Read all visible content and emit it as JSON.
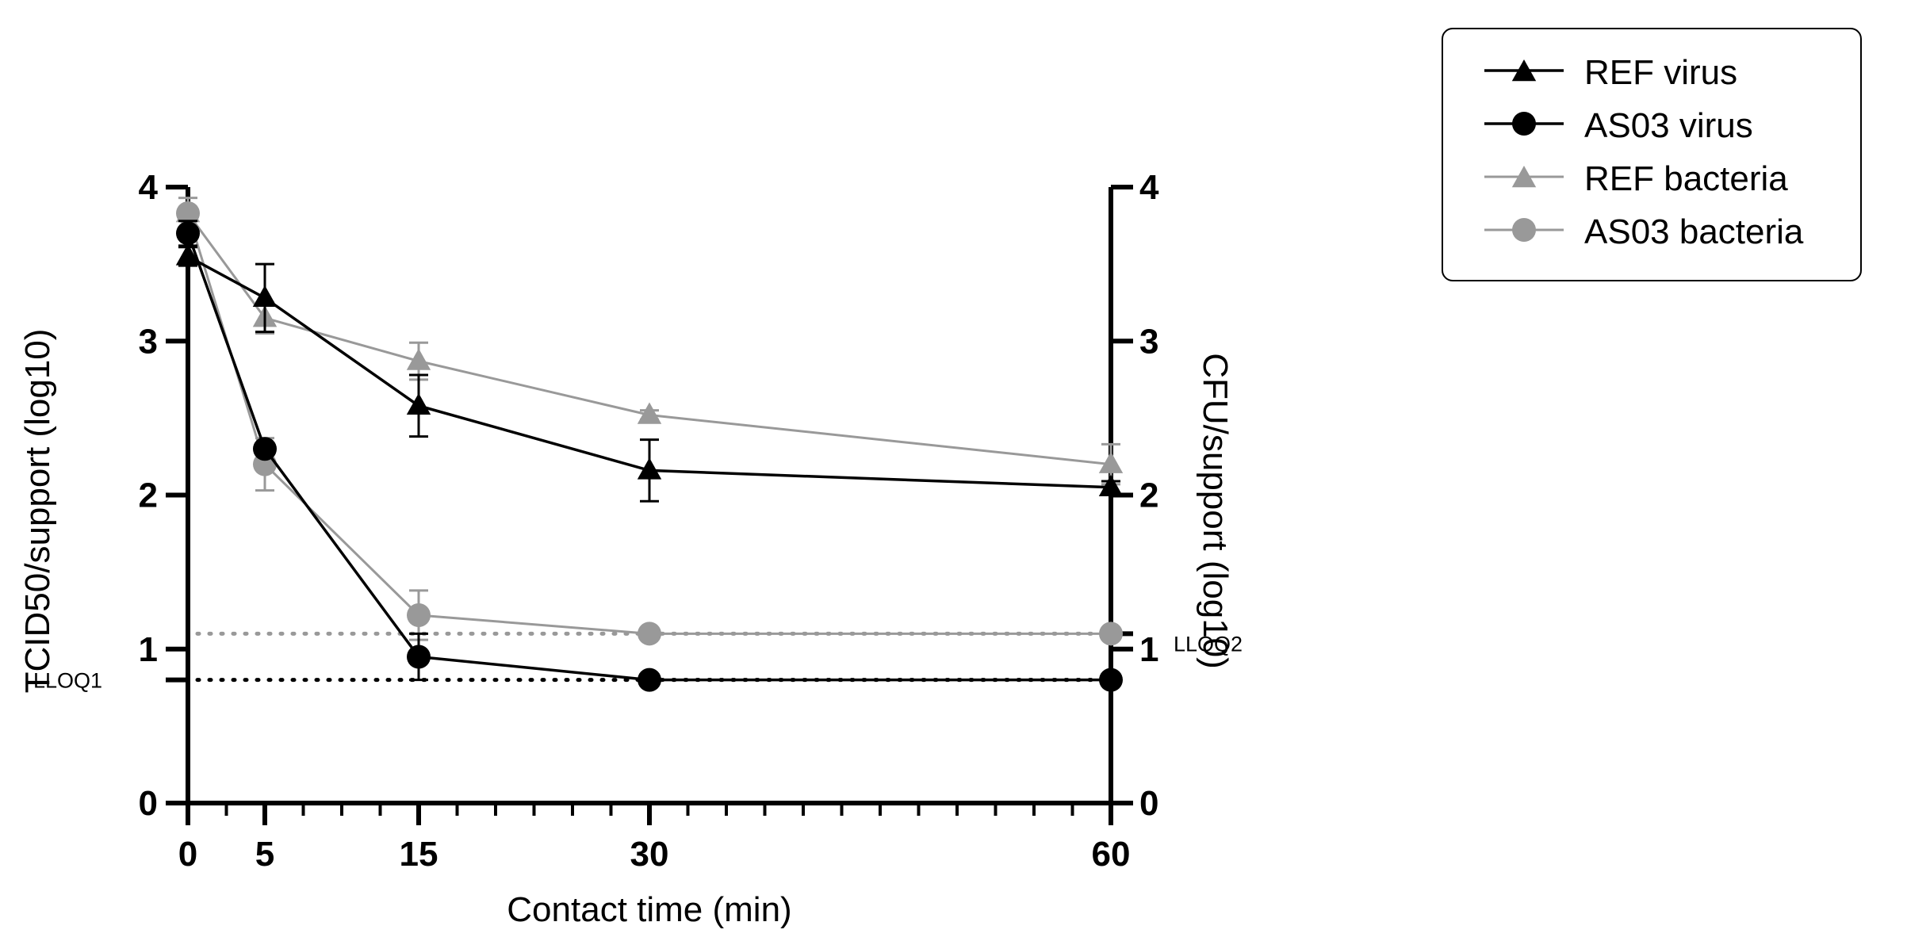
{
  "chart_data": {
    "type": "line",
    "x": [
      0,
      5,
      15,
      30,
      60
    ],
    "xticks": [
      0,
      5,
      15,
      30,
      60
    ],
    "xlabel": "Contact time (min)",
    "xlim": [
      0,
      60
    ],
    "ylim_left": [
      0,
      4
    ],
    "ylim_right": [
      0,
      4
    ],
    "yticks": [
      0,
      1,
      2,
      3,
      4
    ],
    "ylabel_left": "TCID50/support (log10)",
    "ylabel_right": "CFU/support (log10)",
    "series": [
      {
        "name": "REF virus",
        "axis": "left",
        "marker": "triangle",
        "color": "#000000",
        "values": [
          3.55,
          3.28,
          2.58,
          2.16,
          2.05
        ],
        "errors": [
          0.06,
          0.22,
          0.2,
          0.2,
          0.04
        ]
      },
      {
        "name": "AS03 virus",
        "axis": "left",
        "marker": "circle",
        "color": "#000000",
        "values": [
          3.7,
          2.3,
          0.95,
          0.8,
          0.8
        ],
        "errors": [
          0.08,
          0.0,
          0.15,
          0.0,
          0.0
        ]
      },
      {
        "name": "REF bacteria",
        "axis": "right",
        "marker": "triangle",
        "color": "#999999",
        "values": [
          3.83,
          3.15,
          2.87,
          2.52,
          2.2
        ],
        "errors": [
          0.1,
          0.1,
          0.12,
          0.03,
          0.13
        ]
      },
      {
        "name": "AS03 bacteria",
        "axis": "right",
        "marker": "circle",
        "color": "#999999",
        "values": [
          3.83,
          2.2,
          1.22,
          1.1,
          1.1
        ],
        "errors": [
          0.04,
          0.17,
          0.16,
          0.0,
          0.0
        ]
      }
    ],
    "reference_lines": [
      {
        "label": "LLOQ1",
        "value": 0.8,
        "axis": "left",
        "color": "#000000",
        "style": "dotted"
      },
      {
        "label": "LLOQ2",
        "value": 1.1,
        "axis": "right",
        "color": "#999999",
        "style": "dotted"
      }
    ],
    "legend_position": "top-right"
  }
}
